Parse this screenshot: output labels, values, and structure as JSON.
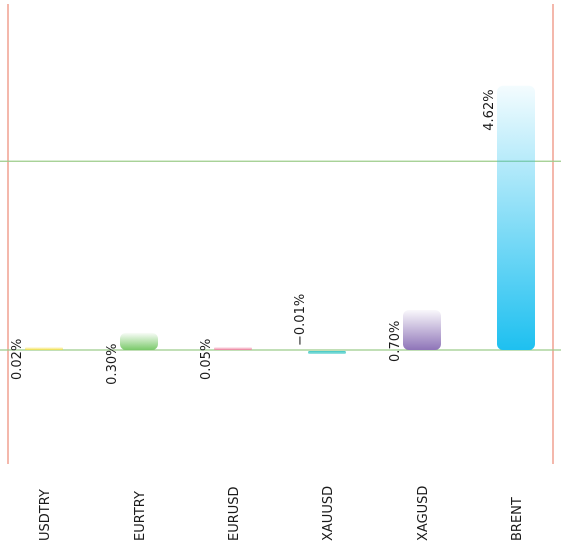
{
  "chart_data": {
    "type": "bar",
    "categories": [
      "USDTRY",
      "EURTRY",
      "EURUSD",
      "XAUUSD",
      "XAGUSD",
      "BRENT"
    ],
    "values": [
      0.02,
      0.3,
      0.05,
      -0.01,
      0.7,
      4.62
    ],
    "value_labels": [
      "0.02%",
      "0.30%",
      "0.05%",
      "−0.01%",
      "0.70%",
      "4.62%"
    ],
    "colors": [
      "#f4e04d",
      "#7ac96a",
      "#f080a0",
      "#3ec8c4",
      "#8e74b8",
      "#1ec0f0"
    ],
    "title": "",
    "xlabel": "",
    "ylabel": "",
    "ylim": [
      -0.1,
      4.9
    ],
    "grid": true,
    "gridline_values": [
      0,
      3.3
    ],
    "gridline_color": "#9ccc8a",
    "frame_color": "#f0a090"
  }
}
